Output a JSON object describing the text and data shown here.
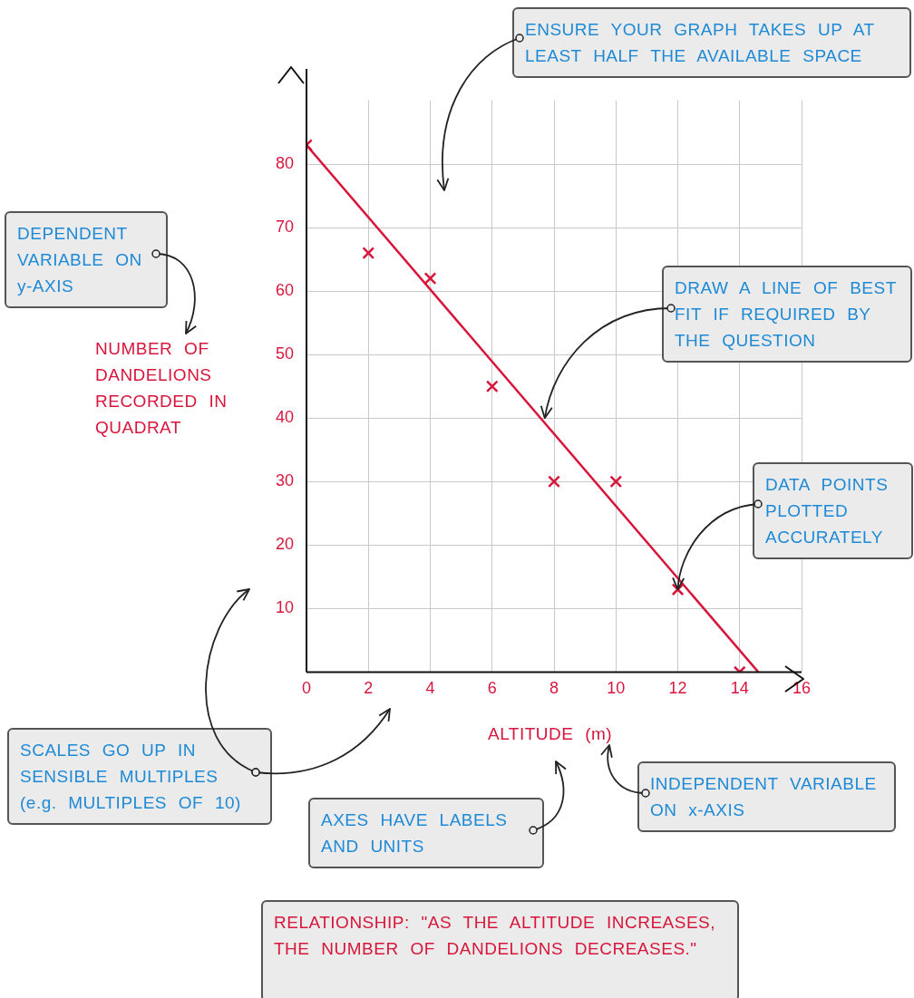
{
  "chart_data": {
    "type": "scatter",
    "xlabel": "ALTITUDE (m)",
    "ylabel": "NUMBER OF DANDELIONS RECORDED IN QUADRAT",
    "xlim": [
      0,
      16
    ],
    "xticks": [
      0,
      2,
      4,
      6,
      8,
      10,
      12,
      14,
      16
    ],
    "ylim": [
      0,
      90
    ],
    "yticks": [
      10,
      20,
      30,
      40,
      50,
      60,
      70,
      80
    ],
    "grid": true,
    "series": [
      {
        "type": "scatter",
        "x": [
          0,
          2,
          4,
          6,
          8,
          10,
          12,
          14
        ],
        "values": [
          83,
          66,
          62,
          45,
          30,
          30,
          13,
          0
        ],
        "color": "#d8163c",
        "marker": "cross"
      },
      {
        "type": "line",
        "x": [
          0,
          14.6
        ],
        "values": [
          83,
          0
        ],
        "color": "#d8163c",
        "marker": "none"
      }
    ],
    "annotations": [
      "ENSURE YOUR GRAPH TAKES UP AT LEAST HALF THE AVAILABLE SPACE",
      "DEPENDENT VARIABLE ON y-AXIS",
      {
        "text": "DRAW A LINE OF BEST FIT IF REQUIRED BY THE QUESTION",
        "x": 7.7,
        "y": 40
      },
      {
        "text": "DATA POINTS PLOTTED ACCURATELY",
        "x": 12,
        "y": 13
      },
      "SCALES GO UP IN SENSIBLE MULTIPLES (e.g. MULTIPLES OF 10)",
      "AXES HAVE LABELS AND UNITS",
      "INDEPENDENT VARIABLE ON x-AXIS",
      "RELATIONSHIP: \"AS THE ALTITUDE INCREASES, THE NUMBER OF DANDELIONS DECREASES.\""
    ]
  }
}
